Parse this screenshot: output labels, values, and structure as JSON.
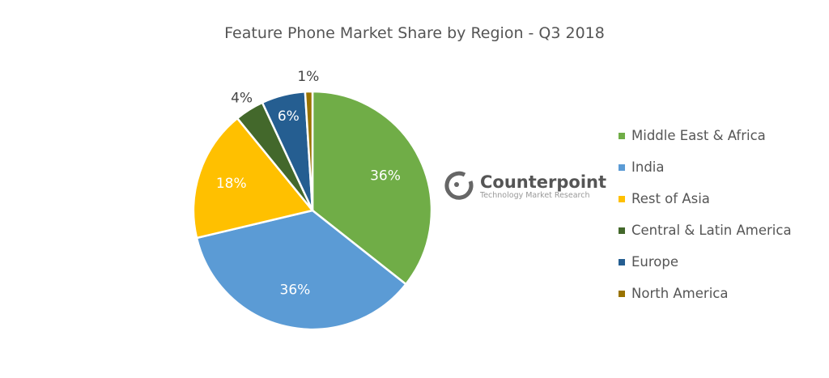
{
  "chart_data": {
    "type": "pie",
    "title": "Feature Phone Market Share by Region - Q3 2018",
    "categories": [
      "Middle East & Africa",
      "India",
      "Rest of Asia",
      "Central & Latin America",
      "Europe",
      "North America"
    ],
    "values": [
      36,
      36,
      18,
      4,
      6,
      1
    ],
    "labels": [
      "36%",
      "36%",
      "18%",
      "4%",
      "6%",
      "1%"
    ],
    "colors": [
      "#70ad47",
      "#5b9bd5",
      "#ffc000",
      "#43682b",
      "#255e91",
      "#997300"
    ],
    "start_angle": "12 o'clock, clockwise",
    "legend": "right"
  },
  "logo": {
    "name": "Counterpoint",
    "tagline": "Technology Market Research"
  }
}
